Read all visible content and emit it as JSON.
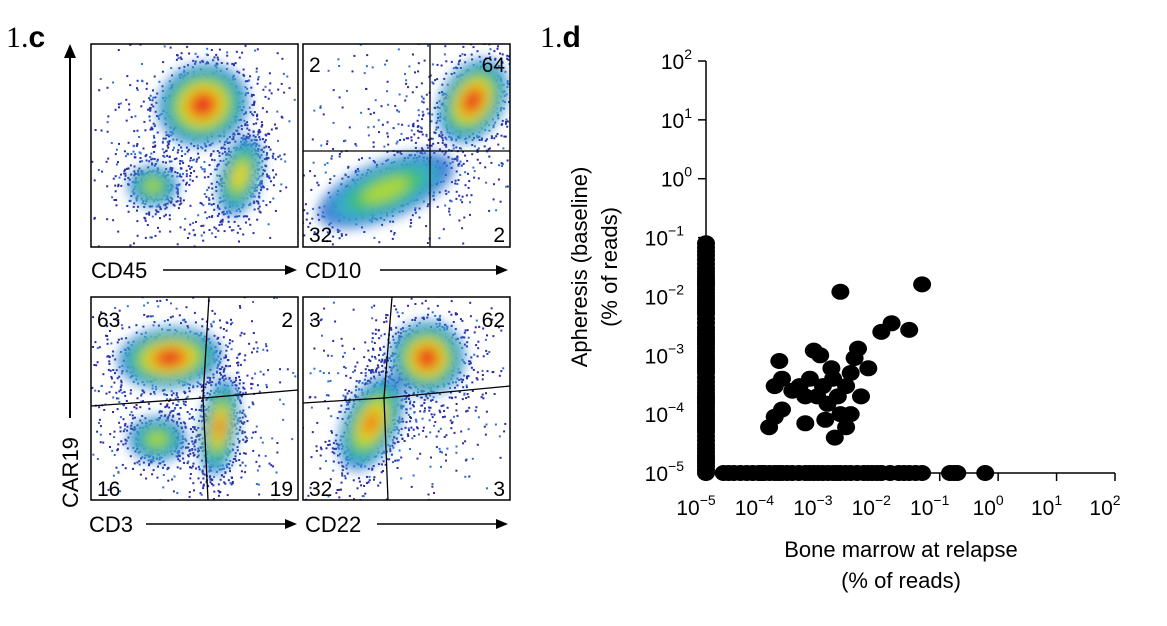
{
  "panel_c": {
    "label_prefix": "1.",
    "label_letter": "c",
    "y_axis_label": "CAR19",
    "plots": [
      {
        "x_label": "CD45",
        "quadrants": {
          "tl": "",
          "tr": "",
          "bl": "",
          "br": ""
        }
      },
      {
        "x_label": "CD10",
        "quadrants": {
          "tl": "2",
          "tr": "64",
          "bl": "32",
          "br": "2"
        }
      },
      {
        "x_label": "CD3",
        "quadrants": {
          "tl": "63",
          "tr": "2",
          "bl": "16",
          "br": "19"
        }
      },
      {
        "x_label": "CD22",
        "quadrants": {
          "tl": "3",
          "tr": "62",
          "bl": "32",
          "br": "3"
        }
      }
    ],
    "colormap": [
      "#2b2ba6",
      "#2f6fd0",
      "#35b3c8",
      "#41c06a",
      "#b7d933",
      "#f3d21b",
      "#ef6a14",
      "#e5131b"
    ]
  },
  "panel_d": {
    "label_prefix": "1.",
    "label_letter": "d",
    "chart_data": {
      "type": "scatter",
      "x_scale": "log",
      "y_scale": "log",
      "xlabel_line1": "Bone marrow at relapse",
      "xlabel_line2": "(% of reads)",
      "ylabel_line1": "Apheresis (baseline)",
      "ylabel_line2": "(% of reads)",
      "xlim_exp": [
        -5,
        2
      ],
      "ylim_exp": [
        -5,
        2
      ],
      "x_ticks": [
        {
          "base": "10",
          "exp": "−5"
        },
        {
          "base": "10",
          "exp": "−4"
        },
        {
          "base": "10",
          "exp": "−3"
        },
        {
          "base": "10",
          "exp": "−2"
        },
        {
          "base": "10",
          "exp": "−1"
        },
        {
          "base": "10",
          "exp": "0"
        },
        {
          "base": "10",
          "exp": "1"
        },
        {
          "base": "10",
          "exp": "2"
        }
      ],
      "y_ticks": [
        {
          "base": "10",
          "exp": "−5"
        },
        {
          "base": "10",
          "exp": "−4"
        },
        {
          "base": "10",
          "exp": "−3"
        },
        {
          "base": "10",
          "exp": "−2"
        },
        {
          "base": "10",
          "exp": "−1"
        },
        {
          "base": "10",
          "exp": "0"
        },
        {
          "base": "10",
          "exp": "1"
        },
        {
          "base": "10",
          "exp": "2"
        }
      ],
      "x_only_points_x": [
        2e-05,
        3e-05,
        5e-05,
        8e-05,
        0.0001,
        0.00015,
        0.0002,
        0.0003,
        0.0005,
        0.0007,
        0.001,
        0.0015,
        0.002,
        0.003,
        0.005,
        0.007,
        0.01,
        0.02,
        0.03,
        0.05,
        0.15,
        0.2,
        0.6
      ],
      "x_only_y": 1e-05,
      "y_only_x": 1e-05,
      "y_only_points_y": [
        1e-05,
        1.5e-05,
        2e-05,
        3e-05,
        5e-05,
        7e-05,
        0.0001,
        0.00015,
        0.0002,
        0.0003,
        0.0005,
        0.0007,
        0.001,
        0.0015,
        0.002,
        0.003,
        0.005,
        0.007,
        0.01,
        0.015,
        0.02,
        0.03,
        0.05,
        0.08
      ],
      "shared_points": [
        {
          "x": 0.00012,
          "y": 6e-05
        },
        {
          "x": 0.00015,
          "y": 9e-05
        },
        {
          "x": 0.0002,
          "y": 0.00012
        },
        {
          "x": 0.00015,
          "y": 0.0003
        },
        {
          "x": 0.0002,
          "y": 0.0004
        },
        {
          "x": 0.00018,
          "y": 0.0008
        },
        {
          "x": 0.0003,
          "y": 0.00025
        },
        {
          "x": 0.0004,
          "y": 0.0003
        },
        {
          "x": 0.0005,
          "y": 0.0002
        },
        {
          "x": 0.0006,
          "y": 0.0004
        },
        {
          "x": 0.0007,
          "y": 0.0012
        },
        {
          "x": 0.0009,
          "y": 0.001
        },
        {
          "x": 0.0008,
          "y": 0.0002
        },
        {
          "x": 0.001,
          "y": 0.0003
        },
        {
          "x": 0.0012,
          "y": 0.00015
        },
        {
          "x": 0.0014,
          "y": 0.0006
        },
        {
          "x": 0.0015,
          "y": 0.0004
        },
        {
          "x": 0.0018,
          "y": 0.0002
        },
        {
          "x": 0.002,
          "y": 0.0001
        },
        {
          "x": 0.0016,
          "y": 4e-05
        },
        {
          "x": 0.0025,
          "y": 0.0003
        },
        {
          "x": 0.003,
          "y": 0.0005
        },
        {
          "x": 0.0035,
          "y": 0.0009
        },
        {
          "x": 0.004,
          "y": 0.0013
        },
        {
          "x": 0.0045,
          "y": 0.0002
        },
        {
          "x": 0.003,
          "y": 0.0001
        },
        {
          "x": 0.006,
          "y": 0.0006
        },
        {
          "x": 0.002,
          "y": 0.012
        },
        {
          "x": 0.01,
          "y": 0.0025
        },
        {
          "x": 0.015,
          "y": 0.0035
        },
        {
          "x": 0.03,
          "y": 0.0027
        },
        {
          "x": 0.05,
          "y": 0.016
        },
        {
          "x": 0.0011,
          "y": 8e-05
        },
        {
          "x": 0.0025,
          "y": 6e-05
        },
        {
          "x": 0.0005,
          "y": 7e-05
        }
      ]
    }
  }
}
